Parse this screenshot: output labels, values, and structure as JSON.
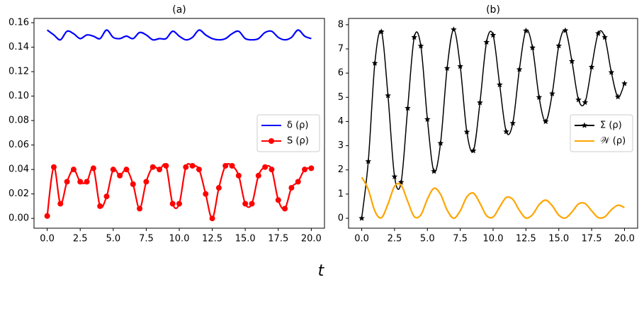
{
  "xlabel": "t",
  "chart_data": [
    {
      "type": "line",
      "title": "(a)",
      "legend": "center right",
      "xlim": [
        -1,
        21
      ],
      "ylim": [
        -0.008,
        0.1635
      ],
      "xticks": [
        {
          "value": 0,
          "label": "0.0"
        },
        {
          "value": 2.5,
          "label": "2.5"
        },
        {
          "value": 5,
          "label": "5.0"
        },
        {
          "value": 7.5,
          "label": "7.5"
        },
        {
          "value": 10,
          "label": "10.0"
        },
        {
          "value": 12.5,
          "label": "12.5"
        },
        {
          "value": 15,
          "label": "15.0"
        },
        {
          "value": 17.5,
          "label": "17.5"
        },
        {
          "value": 20,
          "label": "20.0"
        }
      ],
      "yticks": [
        {
          "value": 0,
          "label": "0.00"
        },
        {
          "value": 0.02,
          "label": "0.02"
        },
        {
          "value": 0.04,
          "label": "0.04"
        },
        {
          "value": 0.06,
          "label": "0.06"
        },
        {
          "value": 0.08,
          "label": "0.08"
        },
        {
          "value": 0.1,
          "label": "0.10"
        },
        {
          "value": 0.12,
          "label": "0.12"
        },
        {
          "value": 0.14,
          "label": "0.14"
        },
        {
          "value": 0.16,
          "label": "0.16"
        }
      ],
      "x": [
        0,
        0.5,
        1,
        1.5,
        2,
        2.5,
        3,
        3.5,
        4,
        4.5,
        5,
        5.5,
        6,
        6.5,
        7,
        7.5,
        8,
        8.5,
        9,
        9.5,
        10,
        10.5,
        11,
        11.5,
        12,
        12.5,
        13,
        13.5,
        14,
        14.5,
        15,
        15.5,
        16,
        16.5,
        17,
        17.5,
        18,
        18.5,
        19,
        19.5,
        20
      ],
      "series": [
        {
          "name": "δ (ρ)",
          "color": "#0000ff",
          "marker": "none",
          "values": [
            0.154,
            0.15,
            0.146,
            0.153,
            0.151,
            0.147,
            0.15,
            0.149,
            0.147,
            0.154,
            0.148,
            0.147,
            0.149,
            0.147,
            0.152,
            0.15,
            0.146,
            0.147,
            0.147,
            0.153,
            0.149,
            0.146,
            0.148,
            0.154,
            0.15,
            0.147,
            0.146,
            0.147,
            0.151,
            0.153,
            0.147,
            0.146,
            0.147,
            0.152,
            0.153,
            0.148,
            0.146,
            0.148,
            0.154,
            0.149,
            0.147
          ]
        },
        {
          "name": "S (ρ)",
          "color": "#ff0000",
          "marker": "circle",
          "values": [
            0.002,
            0.042,
            0.012,
            0.03,
            0.04,
            0.03,
            0.03,
            0.041,
            0.01,
            0.018,
            0.04,
            0.035,
            0.04,
            0.028,
            0.008,
            0.03,
            0.042,
            0.04,
            0.043,
            0.012,
            0.012,
            0.042,
            0.043,
            0.04,
            0.02,
            0.0,
            0.025,
            0.043,
            0.043,
            0.035,
            0.012,
            0.012,
            0.035,
            0.042,
            0.04,
            0.015,
            0.008,
            0.025,
            0.03,
            0.04,
            0.041
          ]
        }
      ]
    },
    {
      "type": "line",
      "title": "(b)",
      "legend": "center right",
      "xlim": [
        -1,
        21
      ],
      "ylim": [
        -0.41,
        8.26
      ],
      "xticks": [
        {
          "value": 0,
          "label": "0.0"
        },
        {
          "value": 2.5,
          "label": "2.5"
        },
        {
          "value": 5,
          "label": "5.0"
        },
        {
          "value": 7.5,
          "label": "7.5"
        },
        {
          "value": 10,
          "label": "10.0"
        },
        {
          "value": 12.5,
          "label": "12.5"
        },
        {
          "value": 15,
          "label": "15.0"
        },
        {
          "value": 17.5,
          "label": "17.5"
        },
        {
          "value": 20,
          "label": "20.0"
        }
      ],
      "yticks": [
        0,
        1,
        2,
        3,
        4,
        5,
        6,
        7,
        8
      ],
      "x": [
        0,
        0.5,
        1,
        1.5,
        2,
        2.5,
        3,
        3.5,
        4,
        4.5,
        5,
        5.5,
        6,
        6.5,
        7,
        7.5,
        8,
        8.5,
        9,
        9.5,
        10,
        10.5,
        11,
        11.5,
        12,
        12.5,
        13,
        13.5,
        14,
        14.5,
        15,
        15.5,
        16,
        16.5,
        17,
        17.5,
        18,
        18.5,
        19,
        19.5,
        20
      ],
      "series": [
        {
          "name": "Σ (ρ)",
          "color": "#000000",
          "marker": "star",
          "values": [
            0,
            2.35,
            6.41,
            7.71,
            5.07,
            1.72,
            1.49,
            4.55,
            7.48,
            7.12,
            4.09,
            1.94,
            3.1,
            6.2,
            7.8,
            6.28,
            3.57,
            2.79,
            4.78,
            7.28,
            7.57,
            5.52,
            3.58,
            3.93,
            6.15,
            7.75,
            7.05,
            5.0,
            4.0,
            5.15,
            7.13,
            7.76,
            6.49,
            4.9,
            4.79,
            6.25,
            7.64,
            7.48,
            6.03,
            5.02,
            5.57
          ]
        },
        {
          "name": "𝒲 (ρ)",
          "color": "#ffa500",
          "marker": "none",
          "values": [
            1.7,
            1.19,
            0.3,
            0.02,
            0.59,
            1.32,
            1.37,
            0.7,
            0.07,
            0.14,
            0.79,
            1.24,
            0.99,
            0.34,
            0,
            0.31,
            0.88,
            1.04,
            0.62,
            0.11,
            0.05,
            0.47,
            0.86,
            0.78,
            0.33,
            0.01,
            0.15,
            0.56,
            0.75,
            0.52,
            0.13,
            0.01,
            0.26,
            0.59,
            0.61,
            0.31,
            0.03,
            0.06,
            0.35,
            0.54,
            0.44
          ]
        }
      ]
    }
  ]
}
